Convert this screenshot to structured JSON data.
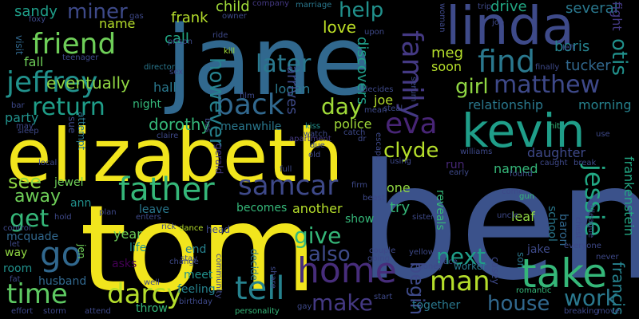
{
  "words": [
    {
      "text": "ben",
      "color": "#3b528b"
    },
    {
      "text": "tom",
      "color": "#f1e51d"
    },
    {
      "text": "elizabeth",
      "color": "#f1e51d"
    },
    {
      "text": "jane",
      "color": "#31688e"
    },
    {
      "text": "kevin",
      "color": "#1f9e89"
    },
    {
      "text": "linda",
      "color": "#3e4a89"
    },
    {
      "text": "take",
      "color": "#35b779"
    },
    {
      "text": "home",
      "color": "#472d7b"
    },
    {
      "text": "father",
      "color": "#35b779"
    },
    {
      "text": "jeffrey",
      "color": "#21918c"
    },
    {
      "text": "friend",
      "color": "#6ece58"
    },
    {
      "text": "samcar",
      "color": "#3e4989"
    },
    {
      "text": "find",
      "color": "#2a788e"
    },
    {
      "text": "tell",
      "color": "#26828e"
    },
    {
      "text": "back",
      "color": "#31688e"
    },
    {
      "text": "go",
      "color": "#31688e"
    },
    {
      "text": "time",
      "color": "#5ec962"
    },
    {
      "text": "darcy",
      "color": "#b5de2b"
    },
    {
      "text": "man",
      "color": "#b5de2b"
    },
    {
      "text": "family",
      "color": "#443983"
    },
    {
      "text": "eva",
      "color": "#482576"
    },
    {
      "text": "matthew",
      "color": "#3e4989"
    },
    {
      "text": "jessie",
      "color": "#22a884"
    },
    {
      "text": "return",
      "color": "#1f9e89"
    },
    {
      "text": "clyde",
      "color": "#b5de2b"
    },
    {
      "text": "later",
      "color": "#2a788e"
    },
    {
      "text": "get",
      "color": "#35b779"
    },
    {
      "text": "day",
      "color": "#a0da39"
    },
    {
      "text": "make",
      "color": "#443983"
    },
    {
      "text": "also",
      "color": "#3e4a89"
    },
    {
      "text": "next",
      "color": "#1f9e89"
    },
    {
      "text": "give",
      "color": "#35b779"
    },
    {
      "text": "work",
      "color": "#2a788e"
    },
    {
      "text": "house",
      "color": "#31688e"
    },
    {
      "text": "otis",
      "color": "#21918c"
    },
    {
      "text": "miner",
      "color": "#3e4a89"
    },
    {
      "text": "however",
      "color": "#26828e"
    },
    {
      "text": "girl",
      "color": "#90d743"
    },
    {
      "text": "help",
      "color": "#21918c"
    },
    {
      "text": "begin",
      "color": "#3e4a89"
    },
    {
      "text": "francis",
      "color": "#26828e"
    },
    {
      "text": "frankenstein",
      "color": "#22a884"
    },
    {
      "text": "eventually",
      "color": "#90d743"
    },
    {
      "text": "dorothy",
      "color": "#35b779"
    },
    {
      "text": "see",
      "color": "#90d743"
    },
    {
      "text": "away",
      "color": "#6ece58"
    },
    {
      "text": "love",
      "color": "#bddf26"
    },
    {
      "text": "meg",
      "color": "#b5de2b"
    },
    {
      "text": "boris",
      "color": "#26828e"
    },
    {
      "text": "tucker",
      "color": "#31688e"
    },
    {
      "text": "sandy",
      "color": "#1f9e89"
    },
    {
      "text": "frank",
      "color": "#b5de2b"
    },
    {
      "text": "child",
      "color": "#a0da39"
    },
    {
      "text": "drive",
      "color": "#22a884"
    },
    {
      "text": "several",
      "color": "#2a788e"
    },
    {
      "text": "fight",
      "color": "#443983"
    },
    {
      "text": "name",
      "color": "#b5de2b"
    },
    {
      "text": "call",
      "color": "#22a884"
    },
    {
      "text": "fall",
      "color": "#6ece58"
    },
    {
      "text": "logan",
      "color": "#2a788e"
    },
    {
      "text": "arrives",
      "color": "#3e4a89"
    },
    {
      "text": "discovers",
      "color": "#1f9e89"
    },
    {
      "text": "soon",
      "color": "#b5de2b"
    },
    {
      "text": "hall",
      "color": "#2a788e"
    },
    {
      "text": "joe",
      "color": "#b5de2b"
    },
    {
      "text": "relationship",
      "color": "#2a788e"
    },
    {
      "text": "morning",
      "color": "#26828e"
    },
    {
      "text": "party",
      "color": "#21918c"
    },
    {
      "text": "night",
      "color": "#35b779"
    },
    {
      "text": "police",
      "color": "#a0da39"
    },
    {
      "text": "meanwhile",
      "color": "#2a788e"
    },
    {
      "text": "daughter",
      "color": "#3e4989"
    },
    {
      "text": "named",
      "color": "#35b779"
    },
    {
      "text": "run",
      "color": "#482878"
    },
    {
      "text": "jewel",
      "color": "#6ece58"
    },
    {
      "text": "sue",
      "color": "#3e4a89"
    },
    {
      "text": "attempt",
      "color": "#2a788e"
    },
    {
      "text": "gerald",
      "color": "#443983"
    },
    {
      "text": "one",
      "color": "#90d743"
    },
    {
      "text": "try",
      "color": "#35b779"
    },
    {
      "text": "leaf",
      "color": "#90d743"
    },
    {
      "text": "school",
      "color": "#2a788e"
    },
    {
      "text": "baron",
      "color": "#31688e"
    },
    {
      "text": "ann",
      "color": "#21918c"
    },
    {
      "text": "leave",
      "color": "#2a788e"
    },
    {
      "text": "becomes",
      "color": "#35b779"
    },
    {
      "text": "another",
      "color": "#b5de2b"
    },
    {
      "text": "show",
      "color": "#35b779"
    },
    {
      "text": "reveals",
      "color": "#35b779"
    },
    {
      "text": "mcquade",
      "color": "#31688e"
    },
    {
      "text": "year",
      "color": "#6ece58"
    },
    {
      "text": "life",
      "color": "#21918c"
    },
    {
      "text": "end",
      "color": "#26828e"
    },
    {
      "text": "jake",
      "color": "#3e4a89"
    },
    {
      "text": "way",
      "color": "#90d743"
    },
    {
      "text": "jen",
      "color": "#6ece58"
    },
    {
      "text": "asks",
      "color": "#440154"
    },
    {
      "text": "decide",
      "color": "#2a788e"
    },
    {
      "text": "casey",
      "color": "#3e4989"
    },
    {
      "text": "room",
      "color": "#21918c"
    },
    {
      "text": "husband",
      "color": "#31688e"
    },
    {
      "text": "meet",
      "color": "#21918c"
    },
    {
      "text": "feeling",
      "color": "#26828e"
    },
    {
      "text": "together",
      "color": "#2a788e"
    },
    {
      "text": "worker",
      "color": "#2a788e"
    },
    {
      "text": "throw",
      "color": "#35b779"
    },
    {
      "text": "son",
      "color": "#2a788e"
    },
    {
      "text": "visit",
      "color": "#31688e"
    },
    {
      "text": "kill",
      "color": "#a0da39"
    },
    {
      "text": "director",
      "color": "#2a788e"
    },
    {
      "text": "teenager",
      "color": "#3e4989"
    },
    {
      "text": "prison",
      "color": "#3e4989"
    },
    {
      "text": "owner",
      "color": "#3e4989"
    },
    {
      "text": "company",
      "color": "#443983"
    },
    {
      "text": "marriage",
      "color": "#2a788e"
    },
    {
      "text": "trip",
      "color": "#3e4989"
    },
    {
      "text": "left",
      "color": "#3e4989"
    },
    {
      "text": "finally",
      "color": "#3e4989"
    },
    {
      "text": "decides",
      "color": "#3e4989"
    },
    {
      "text": "serum",
      "color": "#3e4989"
    },
    {
      "text": "woman",
      "color": "#3e4989"
    },
    {
      "text": "escape",
      "color": "#3e4989"
    },
    {
      "text": "steal",
      "color": "#3e4989"
    },
    {
      "text": "mean",
      "color": "#3e4989"
    },
    {
      "text": "ride",
      "color": "#3e4989"
    },
    {
      "text": "sex",
      "color": "#3e4989"
    },
    {
      "text": "film",
      "color": "#3e4989"
    },
    {
      "text": "apartment",
      "color": "#443983"
    },
    {
      "text": "kiss",
      "color": "#21918c"
    },
    {
      "text": "watch",
      "color": "#3e4989"
    },
    {
      "text": "catch",
      "color": "#3e4989"
    },
    {
      "text": "claire",
      "color": "#3e4989"
    },
    {
      "text": "sleep",
      "color": "#3e4989"
    },
    {
      "text": "may",
      "color": "#3e4989"
    },
    {
      "text": "bar",
      "color": "#3e4989"
    },
    {
      "text": "local",
      "color": "#3e4989"
    },
    {
      "text": "hold",
      "color": "#3e4989"
    },
    {
      "text": "control",
      "color": "#3e4989"
    },
    {
      "text": "let",
      "color": "#3e4989"
    },
    {
      "text": "fat",
      "color": "#3e4989"
    },
    {
      "text": "effort",
      "color": "#3e4989"
    },
    {
      "text": "storm",
      "color": "#3e4989"
    },
    {
      "text": "attend",
      "color": "#3e4989"
    },
    {
      "text": "well",
      "color": "#3e4989"
    },
    {
      "text": "birthday",
      "color": "#3e4989"
    },
    {
      "text": "personality",
      "color": "#35b779"
    },
    {
      "text": "gay",
      "color": "#3e4989"
    },
    {
      "text": "start",
      "color": "#3e4989"
    },
    {
      "text": "money",
      "color": "#3e4989"
    },
    {
      "text": "romantic",
      "color": "#35b779"
    },
    {
      "text": "breaking",
      "color": "#3e4989"
    },
    {
      "text": "move",
      "color": "#3e4989"
    },
    {
      "text": "never",
      "color": "#3e4989"
    },
    {
      "text": "everyone",
      "color": "#3e4989"
    },
    {
      "text": "colleague",
      "color": "#3e4989"
    },
    {
      "text": "chest",
      "color": "#3e4989"
    },
    {
      "text": "uncle",
      "color": "#3e4989"
    },
    {
      "text": "gun",
      "color": "#35b779"
    },
    {
      "text": "found",
      "color": "#3e4989"
    },
    {
      "text": "break",
      "color": "#3e4989"
    },
    {
      "text": "caught",
      "color": "#3e4989"
    },
    {
      "text": "early",
      "color": "#3e4989"
    },
    {
      "text": "williams",
      "color": "#3e4989"
    },
    {
      "text": "hit",
      "color": "#35b779"
    },
    {
      "text": "use",
      "color": "#3e4989"
    },
    {
      "text": "sister",
      "color": "#3e4989"
    },
    {
      "text": "beast",
      "color": "#3e4989"
    },
    {
      "text": "firm",
      "color": "#3e4989"
    },
    {
      "text": "plan",
      "color": "#3e4989"
    },
    {
      "text": "rick",
      "color": "#3e4989"
    },
    {
      "text": "dance",
      "color": "#b5de2b"
    },
    {
      "text": "head",
      "color": "#3e4989"
    },
    {
      "text": "change",
      "color": "#3e4989"
    },
    {
      "text": "stay",
      "color": "#3e4989"
    },
    {
      "text": "community",
      "color": "#3e4989"
    },
    {
      "text": "share",
      "color": "#3e4989"
    },
    {
      "text": "couple",
      "color": "#3e4989"
    },
    {
      "text": "yellow",
      "color": "#3e4989"
    },
    {
      "text": "place",
      "color": "#3e4989"
    },
    {
      "text": "going",
      "color": "#3e4989"
    },
    {
      "text": "enters",
      "color": "#3e4989"
    },
    {
      "text": "full",
      "color": "#3e4989"
    },
    {
      "text": "old",
      "color": "#3e4989"
    },
    {
      "text": "due",
      "color": "#3e4989"
    },
    {
      "text": "dr",
      "color": "#3e4989"
    },
    {
      "text": "come",
      "color": "#3e4989"
    },
    {
      "text": "using",
      "color": "#3e4989"
    },
    {
      "text": "job",
      "color": "#3e4989"
    },
    {
      "text": "gas",
      "color": "#3e4989"
    },
    {
      "text": "foxy",
      "color": "#3e4989"
    },
    {
      "text": "bos",
      "color": "#3e4989"
    },
    {
      "text": "upon",
      "color": "#3e4989"
    }
  ]
}
